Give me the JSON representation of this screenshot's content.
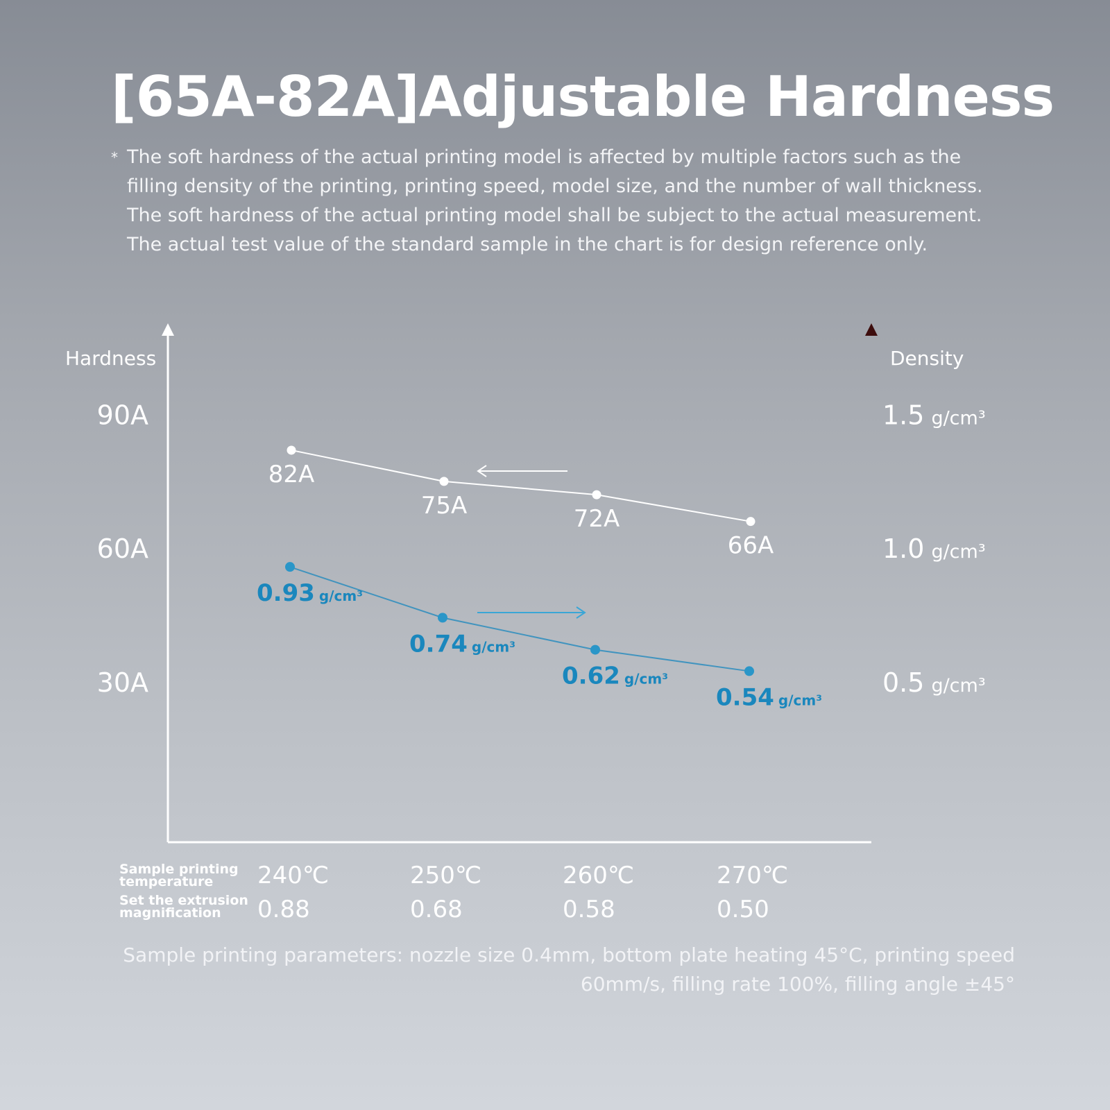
{
  "title": "[65A-82A]Adjustable Hardness",
  "note": {
    "marker": "*",
    "text": "The soft hardness of the actual printing model is affected by multiple factors such as the filling density of the printing, printing speed, model size, and the number of wall thickness. The soft hardness of the actual printing model shall be subject to the actual measurement. The actual test value of the standard sample in the chart is for design reference only."
  },
  "parameters": "Sample printing parameters: nozzle size 0.4mm, bottom plate heating 45°C, printing speed 60mm/s, filling rate 100%, filling angle ±45°",
  "chart_data": {
    "type": "line",
    "categories": [
      "240℃",
      "250℃",
      "260℃",
      "270℃"
    ],
    "row_labels": {
      "temperature": [
        "Sample printing",
        "temperature"
      ],
      "extrusion": [
        "Set the extrusion",
        "magnification"
      ]
    },
    "extrusion_values": [
      "0.88",
      "0.68",
      "0.58",
      "0.50"
    ],
    "y_left": {
      "label": "Hardness",
      "ticks": [
        {
          "value": 90,
          "label": "90A"
        },
        {
          "value": 60,
          "label": "60A"
        },
        {
          "value": 30,
          "label": "30A"
        }
      ],
      "range": [
        -6,
        108
      ]
    },
    "y_right": {
      "label": "Density",
      "ticks": [
        {
          "value": 1.5,
          "label": "1.5",
          "unit": "g/cm³"
        },
        {
          "value": 1.0,
          "label": "1.0",
          "unit": "g/cm³"
        },
        {
          "value": 0.5,
          "label": "0.5",
          "unit": "g/cm³"
        }
      ],
      "range": [
        -0.1,
        1.8
      ]
    },
    "series": [
      {
        "axis": "left",
        "values": [
          82,
          75,
          72,
          66
        ],
        "labels": [
          "82A",
          "75A",
          "72A",
          "66A"
        ],
        "color": "#ffffff",
        "arrow": "left"
      },
      {
        "axis": "right",
        "values": [
          0.93,
          0.74,
          0.62,
          0.54
        ],
        "labels": [
          "0.93",
          "0.74",
          "0.62",
          "0.54"
        ],
        "unit": "g/cm³",
        "color": "#1a87bd",
        "arrow": "right"
      }
    ]
  }
}
